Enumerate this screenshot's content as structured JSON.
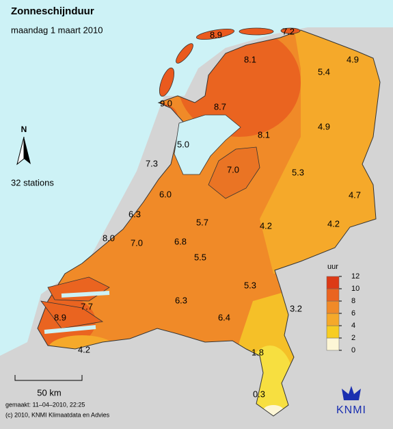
{
  "header": {
    "title": "Zonneschijnduur",
    "subtitle": "maandag 1 maart 2010"
  },
  "north": "N",
  "station_count": "32 stations",
  "scale": "50 km",
  "stations": [
    "8.9",
    "7.2",
    "8.1",
    "5.4",
    "4.9",
    "9.0",
    "8.7",
    "8.1",
    "4.9",
    "5.0",
    "7.3",
    "7.0",
    "5.3",
    "4.7",
    "6.0",
    "6.3",
    "5.7",
    "4.2",
    "4.2",
    "8.0",
    "7.0",
    "6.8",
    "5.5",
    "5.3",
    "6.3",
    "7.7",
    "8.9",
    "3.2",
    "6.4",
    "4.2",
    "1.8",
    "0.3"
  ],
  "legend": {
    "unit": "uur",
    "ticks": [
      0,
      2,
      4,
      6,
      8,
      10,
      12
    ],
    "colors": [
      "#fdf6d6",
      "#f7cd22",
      "#f5a92a",
      "#f08a28",
      "#ea6420",
      "#dc3a16"
    ]
  },
  "footer": [
    "gemaakt: 11–04–2010, 22:25",
    "(c) 2010, KNMI Klimaatdata en Advies"
  ],
  "logo": "KNMI"
}
